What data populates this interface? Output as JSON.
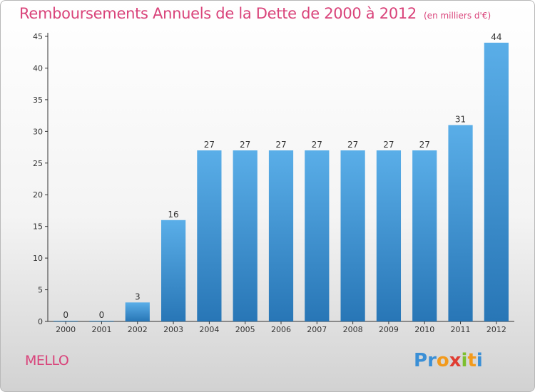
{
  "header": {
    "title": "Remboursements Annuels de la Dette de 2000 à 2012",
    "unit": "(en milliers d'€)"
  },
  "footer": {
    "place": "MELLO",
    "logo": {
      "letters": [
        "P",
        "r",
        "o",
        "x",
        "i",
        "t",
        "i"
      ],
      "colors": [
        "#3a8fd6",
        "#3a8fd6",
        "#f29a1c",
        "#e03c31",
        "#7cbf2e",
        "#f29a1c",
        "#3a8fd6"
      ]
    }
  },
  "colors": {
    "accent": "#d9437a",
    "bar_top": "#5aaee8",
    "bar_bottom": "#2876b6",
    "axis": "#333333"
  },
  "chart_data": {
    "type": "bar",
    "categories": [
      "2000",
      "2001",
      "2002",
      "2003",
      "2004",
      "2005",
      "2006",
      "2007",
      "2008",
      "2009",
      "2010",
      "2011",
      "2012"
    ],
    "values": [
      0,
      0,
      3,
      16,
      27,
      27,
      27,
      27,
      27,
      27,
      27,
      31,
      44
    ],
    "value_labels": [
      "0",
      "0",
      "3",
      "16",
      "27",
      "27",
      "27",
      "27",
      "27",
      "27",
      "27",
      "31",
      "44"
    ],
    "yticks": [
      "0",
      "5",
      "10",
      "15",
      "20",
      "25",
      "30",
      "35",
      "40",
      "45"
    ],
    "ylim": [
      0,
      45
    ],
    "grid": false,
    "legend": false
  }
}
